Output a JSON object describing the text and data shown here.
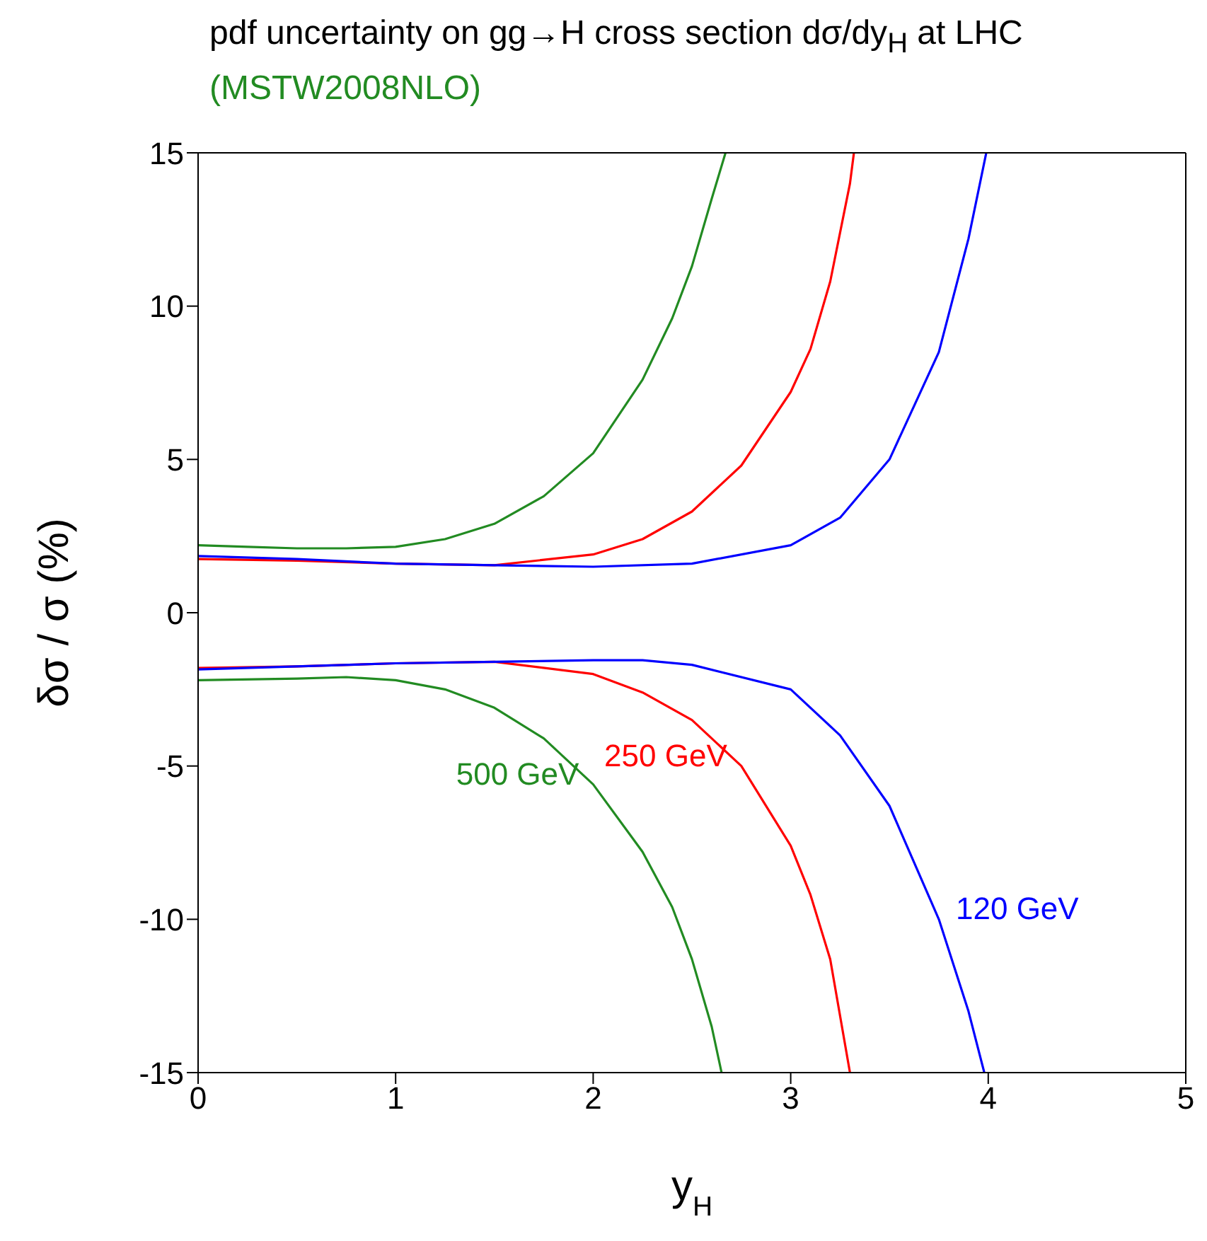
{
  "chart_data": {
    "type": "line",
    "title": "pdf uncertainty on gg→H cross section dσ/dy$_{H}$ at LHC",
    "subtitle": "(MSTW2008NLO)",
    "xlabel": "y$_{H}$",
    "ylabel": "δσ / σ (%)",
    "xlim": [
      0,
      5
    ],
    "xticks": [
      0,
      1,
      2,
      3,
      4,
      5
    ],
    "ylim": [
      -15,
      15
    ],
    "yticks": [
      -15,
      -10,
      -5,
      0,
      5,
      10,
      15
    ],
    "grid": false,
    "legend": false,
    "marker": "none",
    "line_style": "solid",
    "series": [
      {
        "color": "#228b22",
        "x": [
          0,
          0.25,
          0.5,
          0.75,
          1.0,
          1.25,
          1.5,
          1.75,
          2.0,
          2.25,
          2.4,
          2.5,
          2.6,
          2.67
        ],
        "values": [
          2.2,
          2.15,
          2.1,
          2.1,
          2.15,
          2.4,
          2.9,
          3.8,
          5.2,
          7.6,
          9.6,
          11.3,
          13.5,
          15
        ]
      },
      {
        "name": "500 GeV",
        "color": "#228b22",
        "x": [
          0,
          0.5,
          0.75,
          1.0,
          1.25,
          1.5,
          1.75,
          2.0,
          2.25,
          2.4,
          2.5,
          2.6,
          2.65
        ],
        "values": [
          -2.2,
          -2.15,
          -2.1,
          -2.2,
          -2.5,
          -3.1,
          -4.1,
          -5.6,
          -7.8,
          -9.6,
          -11.3,
          -13.5,
          -15
        ]
      },
      {
        "color": "#ff0000",
        "x": [
          0,
          0.5,
          1.0,
          1.5,
          2.0,
          2.25,
          2.5,
          2.75,
          3.0,
          3.1,
          3.2,
          3.3,
          3.32
        ],
        "values": [
          1.75,
          1.7,
          1.6,
          1.55,
          1.9,
          2.4,
          3.3,
          4.8,
          7.2,
          8.6,
          10.8,
          14,
          15
        ]
      },
      {
        "name": "250 GeV",
        "color": "#ff0000",
        "x": [
          0,
          0.5,
          1.0,
          1.5,
          2.0,
          2.25,
          2.5,
          2.75,
          3.0,
          3.1,
          3.2,
          3.3
        ],
        "values": [
          -1.8,
          -1.75,
          -1.65,
          -1.6,
          -2.0,
          -2.6,
          -3.5,
          -5.0,
          -7.6,
          -9.2,
          -11.3,
          -15
        ]
      },
      {
        "color": "#0000ff",
        "x": [
          0,
          0.5,
          1.0,
          1.5,
          2.0,
          2.5,
          3.0,
          3.25,
          3.5,
          3.75,
          3.9,
          3.99
        ],
        "values": [
          1.85,
          1.75,
          1.6,
          1.55,
          1.5,
          1.6,
          2.2,
          3.1,
          5.0,
          8.5,
          12.2,
          15
        ]
      },
      {
        "name": "120 GeV",
        "color": "#0000ff",
        "x": [
          0,
          0.5,
          1.0,
          1.5,
          2.0,
          2.25,
          2.5,
          3.0,
          3.25,
          3.5,
          3.75,
          3.9,
          3.98
        ],
        "values": [
          -1.85,
          -1.75,
          -1.65,
          -1.6,
          -1.55,
          -1.55,
          -1.7,
          -2.5,
          -4.0,
          -6.3,
          -10.0,
          -13.0,
          -15
        ]
      }
    ]
  }
}
